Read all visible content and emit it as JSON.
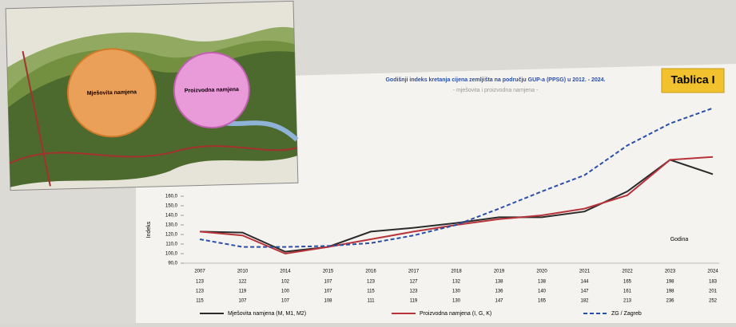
{
  "map": {
    "labels": [
      "Mješovita namjena",
      "Proizvodna namjena"
    ]
  },
  "badge": "Tablica I",
  "chart_data": {
    "type": "line",
    "title": "Godišnji indeks kretanja cijena zemljišta na području GUP-a (PPSG) u 2012. - 2024.",
    "subtitle": "- mješovita i proizvodna namjena -",
    "y_label": "Indeks",
    "x_label": "Godina",
    "categories": [
      "2007",
      "2010",
      "2014",
      "2015",
      "2016",
      "2017",
      "2018",
      "2019",
      "2020",
      "2021",
      "2022",
      "2023",
      "2024"
    ],
    "series": [
      {
        "name": "Mješovita namjena (M, M1, M2)",
        "color": "#2b2b2b",
        "dash": false,
        "values": [
          123,
          122,
          102,
          107,
          123,
          127,
          132,
          138,
          138,
          144,
          165,
          198,
          183
        ]
      },
      {
        "name": "Proizvodna namjena (I, G, K)",
        "color": "#b8333a",
        "dash": false,
        "values": [
          123,
          119,
          100,
          107,
          115,
          123,
          130,
          136,
          140,
          147,
          161,
          198,
          201
        ]
      },
      {
        "name": "ZG / Zagreb",
        "color": "#2a4fa8",
        "dash": true,
        "values": [
          115,
          107,
          107,
          108,
          111,
          119,
          130,
          147,
          165,
          182,
          213,
          236,
          252
        ]
      }
    ],
    "ylim": [
      90,
      260
    ],
    "yticks": [
      {
        "value": 90,
        "label": "90,0"
      },
      {
        "value": 100,
        "label": "100,0"
      },
      {
        "value": 110,
        "label": "110,0"
      },
      {
        "value": 120,
        "label": "120,0"
      },
      {
        "value": 130,
        "label": "130,0"
      },
      {
        "value": 140,
        "label": "140,0"
      },
      {
        "value": 150,
        "label": "150,0"
      },
      {
        "value": 160,
        "label": "160,0"
      }
    ],
    "grid": false
  }
}
